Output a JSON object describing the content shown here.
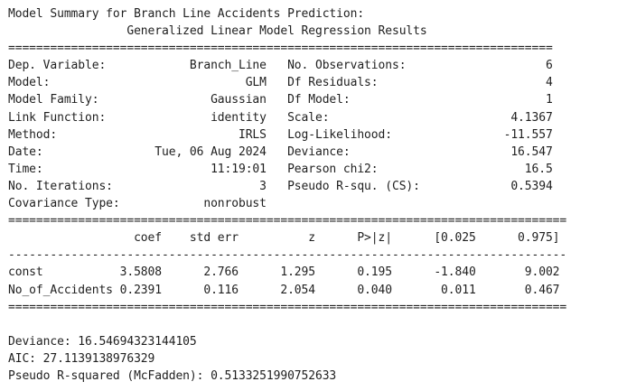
{
  "lines": [
    "Model Summary for Branch Line Accidents Prediction:",
    "                 Generalized Linear Model Regression Results",
    "==============================================================================",
    "Dep. Variable:            Branch_Line   No. Observations:                    6",
    "Model:                            GLM   Df Residuals:                        4",
    "Model Family:                Gaussian   Df Model:                            1",
    "Link Function:               identity   Scale:                          4.1367",
    "Method:                          IRLS   Log-Likelihood:                -11.557",
    "Date:                Tue, 06 Aug 2024   Deviance:                       16.547",
    "Time:                        11:19:01   Pearson chi2:                     16.5",
    "No. Iterations:                     3   Pseudo R-squ. (CS):             0.5394",
    "Covariance Type:            nonrobust",
    "================================================================================",
    "                  coef    std err          z      P>|z|      [0.025      0.975]",
    "--------------------------------------------------------------------------------",
    "const           3.5808      2.766      1.295      0.195      -1.840       9.002",
    "No_of_Accidents 0.2391      0.116      2.054      0.040       0.011       0.467",
    "================================================================================",
    "",
    "Deviance: 16.54694323144105",
    "AIC: 27.1139138976329",
    "Pseudo R-squared (McFadden): 0.5133251990752633"
  ]
}
